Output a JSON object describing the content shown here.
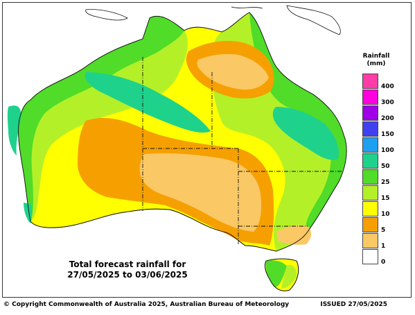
{
  "map": {
    "title_line1": "Total forecast rainfall for",
    "title_line2": "27/05/2025 to 03/06/2025"
  },
  "legend": {
    "title_line1": "Rainfall",
    "title_line2": "(mm)",
    "entries": [
      {
        "label": "400",
        "color": "#ff3ca8"
      },
      {
        "label": "300",
        "color": "#ff00e0"
      },
      {
        "label": "200",
        "color": "#a000e8"
      },
      {
        "label": "150",
        "color": "#4040f0"
      },
      {
        "label": "100",
        "color": "#1ea0f0"
      },
      {
        "label": "50",
        "color": "#1ed28c"
      },
      {
        "label": "25",
        "color": "#50dc28"
      },
      {
        "label": "15",
        "color": "#b4f028"
      },
      {
        "label": "10",
        "color": "#ffff00"
      },
      {
        "label": "5",
        "color": "#f5a000"
      },
      {
        "label": "1",
        "color": "#fac864"
      },
      {
        "label": "0",
        "color": "#ffffff"
      }
    ]
  },
  "footer": {
    "copyright": "© Copyright Commonwealth of Australia 2025, Australian Bureau of Meteorology",
    "issued": "ISSUED 27/05/2025"
  }
}
